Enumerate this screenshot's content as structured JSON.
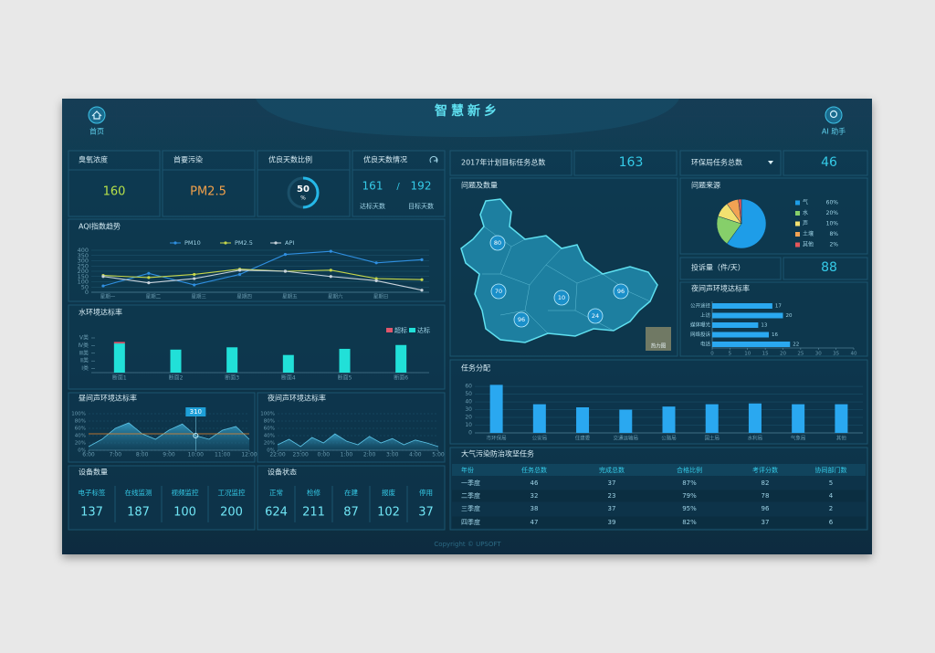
{
  "header": {
    "title": "智慧新乡",
    "home": "首页",
    "assistant": "AI 助手"
  },
  "ozone": {
    "label": "臭氧浓度",
    "value": 160
  },
  "pollutant": {
    "label": "首要污染",
    "value": "PM2.5"
  },
  "good_ratio": {
    "label": "优良天数比例",
    "value": 50,
    "unit": "%"
  },
  "good_days": {
    "label": "优良天数情况",
    "actual": 161,
    "separator": "/",
    "target": 192,
    "actual_label": "达标天数",
    "target_label": "目标天数"
  },
  "aqi": {
    "type": "line",
    "title": "AQI指数趋势",
    "categories": [
      "星期一",
      "星期二",
      "星期三",
      "星期四",
      "星期五",
      "星期六",
      "星期日",
      null
    ],
    "series": [
      {
        "name": "PM10",
        "color": "#2f8fe0",
        "values": [
          60,
          180,
          70,
          170,
          360,
          390,
          280,
          310
        ]
      },
      {
        "name": "PM2.5",
        "color": "#c6d64a",
        "values": [
          160,
          140,
          170,
          220,
          200,
          210,
          130,
          120
        ]
      },
      {
        "name": "API",
        "color": "#c9d3dc",
        "values": [
          150,
          90,
          130,
          210,
          200,
          150,
          110,
          20
        ]
      }
    ],
    "ylim": [
      0,
      400
    ],
    "yticks": [
      0,
      50,
      100,
      150,
      200,
      250,
      300,
      350,
      400
    ]
  },
  "water": {
    "type": "bar",
    "title": "水环境达标率",
    "categories": [
      "断面1",
      "断面2",
      "断面3",
      "断面4",
      "断面5",
      "断面6"
    ],
    "series": [
      {
        "name": "达标",
        "color": "#21e0d8",
        "values": [
          3.8,
          3.0,
          3.3,
          2.3,
          3.1,
          3.6
        ]
      },
      {
        "name": "超标",
        "color": "#e0566b",
        "values": [
          0.2,
          0,
          0,
          0,
          0,
          0
        ]
      }
    ],
    "ylim": [
      0,
      5
    ],
    "yticks": [
      {
        "value": 1,
        "label": "Ⅰ类"
      },
      {
        "value": 2,
        "label": "Ⅱ类"
      },
      {
        "value": 3,
        "label": "Ⅲ类"
      },
      {
        "value": 4,
        "label": "Ⅳ类"
      },
      {
        "value": 5,
        "label": "Ⅴ类"
      }
    ]
  },
  "day_noise": {
    "type": "area",
    "title": "昼间声环境达标率",
    "x": [
      6,
      6.5,
      7,
      7.5,
      8,
      8.5,
      9,
      9.5,
      10,
      10.5,
      11,
      11.5,
      12
    ],
    "values": [
      10,
      30,
      60,
      75,
      45,
      30,
      55,
      72,
      40,
      30,
      55,
      65,
      30
    ],
    "threshold": 45,
    "annotation": {
      "text": "310",
      "x": 10
    },
    "xlim": [
      6,
      12
    ],
    "xticks": [
      {
        "value": 6,
        "label": "6:00"
      },
      {
        "value": 7,
        "label": "7:00"
      },
      {
        "value": 8,
        "label": "8:00"
      },
      {
        "value": 9,
        "label": "9:00"
      },
      {
        "value": 10,
        "label": "10:00"
      },
      {
        "value": 11,
        "label": "11:00"
      },
      {
        "value": 12,
        "label": "12:00"
      }
    ],
    "ylim": [
      0,
      100
    ],
    "yticks": [
      {
        "value": 0,
        "label": "0%"
      },
      {
        "value": 20,
        "label": "20%"
      },
      {
        "value": 40,
        "label": "40%"
      },
      {
        "value": 60,
        "label": "60%"
      },
      {
        "value": 80,
        "label": "80%"
      },
      {
        "value": 100,
        "label": "100%"
      }
    ]
  },
  "night_noise": {
    "type": "area",
    "title": "夜间声环境达标率",
    "x": [
      22,
      22.5,
      23,
      23.5,
      24,
      24.5,
      25,
      25.5,
      26,
      26.5,
      27,
      27.5,
      28,
      28.5,
      29
    ],
    "values": [
      15,
      30,
      10,
      35,
      20,
      45,
      25,
      15,
      38,
      20,
      32,
      15,
      28,
      20,
      10
    ],
    "xlim": [
      22,
      29
    ],
    "xticks": [
      {
        "value": 22,
        "label": "22:00"
      },
      {
        "value": 23,
        "label": "23:00"
      },
      {
        "value": 24,
        "label": "0:00"
      },
      {
        "value": 25,
        "label": "1:00"
      },
      {
        "value": 26,
        "label": "2:00"
      },
      {
        "value": 27,
        "label": "3:00"
      },
      {
        "value": 28,
        "label": "4:00"
      },
      {
        "value": 29,
        "label": "5:00"
      }
    ],
    "ylim": [
      0,
      100
    ],
    "yticks": [
      {
        "value": 0,
        "label": "0%"
      },
      {
        "value": 20,
        "label": "20%"
      },
      {
        "value": 40,
        "label": "40%"
      },
      {
        "value": 60,
        "label": "60%"
      },
      {
        "value": 80,
        "label": "80%"
      },
      {
        "value": 100,
        "label": "100%"
      }
    ]
  },
  "devices": {
    "title": "设备数量",
    "items": [
      {
        "label": "电子标签",
        "value": 137
      },
      {
        "label": "在线监测",
        "value": 187
      },
      {
        "label": "视频监控",
        "value": 100
      },
      {
        "label": "工况监控",
        "value": 200
      }
    ]
  },
  "status": {
    "title": "设备状态",
    "items": [
      {
        "label": "正常",
        "value": 624
      },
      {
        "label": "检修",
        "value": 211
      },
      {
        "label": "在建",
        "value": 87
      },
      {
        "label": "报废",
        "value": 102
      },
      {
        "label": "停用",
        "value": 37
      }
    ]
  },
  "targets": {
    "plan_label": "2017年计划目标任务总数",
    "plan_value": 163,
    "bureau_label": "环保局任务总数",
    "bureau_value": 46
  },
  "map": {
    "title": "问题及数量",
    "legend": "热力图",
    "values": [
      80,
      70,
      10,
      96,
      24,
      96
    ]
  },
  "sources": {
    "type": "pie",
    "title": "问题来源",
    "categories": [
      "气",
      "水",
      "声",
      "土壤",
      "其他"
    ],
    "values": [
      60,
      20,
      10,
      8,
      2
    ],
    "value_labels": [
      "60%",
      "20%",
      "10%",
      "8%",
      "2%"
    ],
    "colors": [
      "#1e9de8",
      "#86cf6a",
      "#f3e170",
      "#f2a253",
      "#e4565a"
    ]
  },
  "complaints": {
    "label": "投诉量（件/天）",
    "value": 88
  },
  "night_rate": {
    "type": "hbar",
    "title": "夜间声环境达标率",
    "categories": [
      "公开途径",
      "上访",
      "媒体曝光",
      "网络投诉",
      "电话"
    ],
    "values": [
      17,
      20,
      13,
      16,
      22
    ],
    "color": "#2aa8f0",
    "xlim": [
      0,
      40
    ],
    "xticks": [
      0,
      5,
      10,
      15,
      20,
      25,
      30,
      35,
      40
    ]
  },
  "tasks": {
    "type": "bar",
    "title": "任务分配",
    "categories": [
      "市环保局",
      "公安局",
      "住建委",
      "交通运输局",
      "公路局",
      "国土局",
      "水利局",
      "气象局",
      "其他"
    ],
    "values": [
      62,
      37,
      33,
      30,
      34,
      37,
      38,
      37,
      37
    ],
    "color": "#2aa8f0",
    "ylim": [
      0,
      66
    ],
    "yticks": [
      0,
      10,
      20,
      30,
      40,
      50,
      60
    ]
  },
  "table": {
    "title": "大气污染防治攻坚任务",
    "header": [
      "年份",
      "任务总数",
      "完成总数",
      "合格比例",
      "考评分数",
      "协同部门数"
    ],
    "rows": [
      [
        "一季度",
        "46",
        "37",
        "87%",
        "82",
        "5"
      ],
      [
        "二季度",
        "32",
        "23",
        "79%",
        "78",
        "4"
      ],
      [
        "三季度",
        "38",
        "37",
        "95%",
        "96",
        "2"
      ],
      [
        "四季度",
        "47",
        "39",
        "82%",
        "37",
        "6"
      ]
    ]
  },
  "footer": "Copyright © UPSOFT"
}
